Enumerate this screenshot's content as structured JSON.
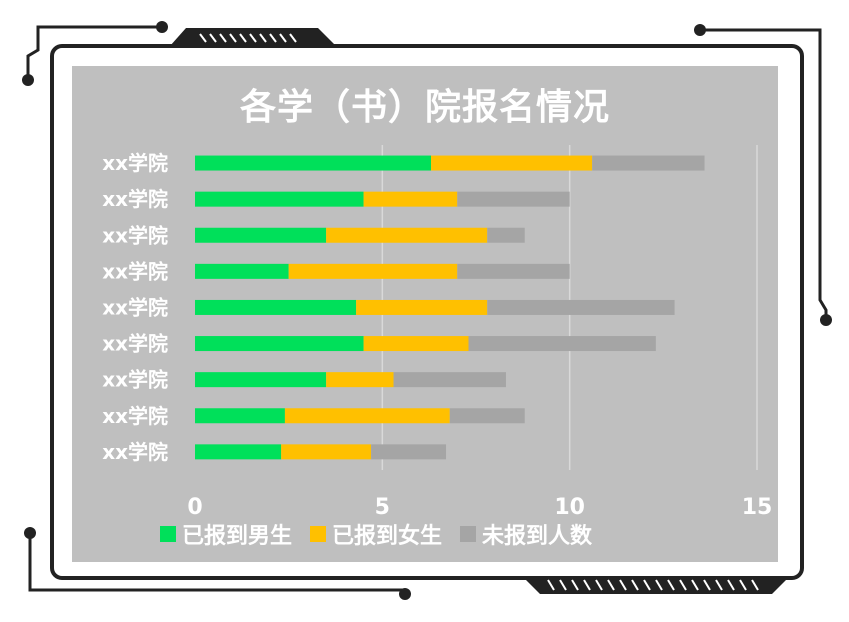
{
  "chart_data": {
    "type": "bar",
    "orientation": "horizontal",
    "stacked": true,
    "title": "各学（书）院报名情况",
    "categories": [
      "xx学院",
      "xx学院",
      "xx学院",
      "xx学院",
      "xx学院",
      "xx学院",
      "xx学院",
      "xx学院",
      "xx学院"
    ],
    "series": [
      {
        "name": "已报到男生",
        "color": "#00e05a",
        "values": [
          6.3,
          4.5,
          3.5,
          2.5,
          4.3,
          4.5,
          3.5,
          2.4,
          2.3
        ]
      },
      {
        "name": "已报到女生",
        "color": "#ffc000",
        "values": [
          4.3,
          2.5,
          4.3,
          4.5,
          3.5,
          2.8,
          1.8,
          4.4,
          2.4
        ]
      },
      {
        "name": "未报到人数",
        "color": "#a5a5a5",
        "values": [
          3.0,
          3.0,
          1.0,
          3.0,
          5.0,
          5.0,
          3.0,
          2.0,
          2.0
        ]
      }
    ],
    "xlim": [
      0,
      15
    ],
    "xticks": [
      "0",
      "5",
      "10",
      "15"
    ],
    "grid": true,
    "legend_position": "bottom",
    "background": "#bfbfbf"
  }
}
